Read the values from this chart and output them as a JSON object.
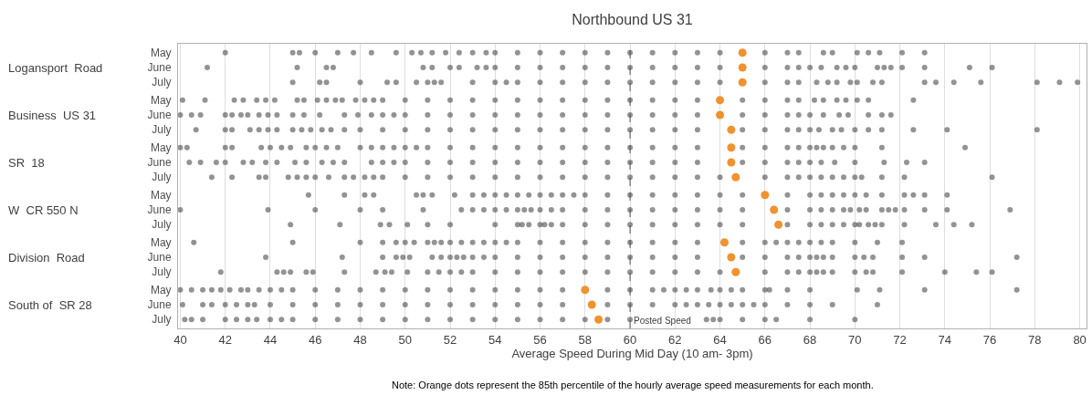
{
  "chart_data": [
    {
      "type": "scatter",
      "orientation": "horizontal",
      "title": "Northbound US 31",
      "ylabel": "Logansport  Road",
      "categories": [
        "May",
        "June",
        "July"
      ],
      "xlim": [
        39.9,
        80.3
      ],
      "xticks": [
        40,
        42,
        44,
        46,
        48,
        50,
        52,
        54,
        56,
        58,
        60,
        62,
        64,
        66,
        68,
        70,
        72,
        74,
        76,
        78,
        80
      ],
      "grid": "x",
      "marker": "circle",
      "tick_labels": "y",
      "ref_lines": [
        {
          "axis": "x",
          "value": 60,
          "color": "#555555",
          "line_style": "dashed"
        }
      ],
      "series": [
        {
          "color": "#3a3a3a",
          "x": [
            "May",
            "May",
            "May",
            "May",
            "May",
            "May",
            "May",
            "May",
            "May",
            "May",
            "May",
            "May",
            "May",
            "May",
            "May",
            "May",
            "May",
            "May",
            "May",
            "May",
            "May",
            "May",
            "May",
            "May",
            "May",
            "May",
            "May",
            "May",
            "May",
            "May",
            "May",
            "May",
            "May",
            "May",
            "May",
            "May",
            "June",
            "June",
            "June",
            "June",
            "June",
            "June",
            "June",
            "June",
            "June",
            "June",
            "June",
            "June",
            "June",
            "June",
            "June",
            "June",
            "June",
            "June",
            "June",
            "June",
            "June",
            "June",
            "June",
            "June",
            "June",
            "June",
            "June",
            "June",
            "June",
            "June",
            "June",
            "June",
            "June",
            "June",
            "June",
            "June",
            "July",
            "July",
            "July",
            "July",
            "July",
            "July",
            "July",
            "July",
            "July",
            "July",
            "July",
            "July",
            "July",
            "July",
            "July",
            "July",
            "July",
            "July",
            "July",
            "July",
            "July",
            "July",
            "July",
            "July",
            "July",
            "July",
            "July",
            "July",
            "July",
            "July",
            "July",
            "July",
            "July",
            "July",
            "July",
            "July",
            "July",
            "July",
            "July",
            "July"
          ],
          "values": [
            42,
            45,
            45.3,
            46,
            47,
            47.7,
            48.5,
            49.6,
            50.3,
            50.7,
            51.2,
            51.8,
            52.4,
            53,
            53.6,
            54,
            55,
            56,
            57,
            58,
            59,
            60,
            61,
            62,
            63,
            64,
            66,
            67,
            67.5,
            68.6,
            69,
            70.1,
            70.6,
            71.1,
            72.1,
            73.1,
            41.2,
            45.2,
            46.5,
            46.8,
            50.8,
            51.2,
            52,
            52.4,
            53.2,
            53.6,
            54,
            55,
            56,
            57,
            58,
            59,
            60,
            61,
            62,
            63,
            64,
            66,
            67,
            67.5,
            68,
            68.5,
            69.2,
            69.6,
            70,
            71,
            71.3,
            71.6,
            72.1,
            73.1,
            75.1,
            76.1,
            45,
            46.2,
            46.5,
            48,
            49.2,
            49.6,
            50.5,
            51,
            51.3,
            51.6,
            53,
            54,
            54.5,
            55,
            56,
            57,
            58,
            59,
            60,
            61,
            62,
            63,
            64,
            66,
            67,
            67.5,
            68.3,
            68.8,
            69.2,
            69.8,
            70.1,
            70.8,
            71.2,
            73.1,
            73.6,
            74.4,
            75.6,
            78.1,
            79.1,
            79.9
          ]
        },
        {
          "color": "#f0922e",
          "values": [
            65.0,
            65.0,
            65.0
          ]
        }
      ]
    },
    {
      "type": "scatter",
      "orientation": "horizontal",
      "ylabel": "Business  US 31",
      "categories": [
        "May",
        "June",
        "July"
      ],
      "xlim": [
        39.9,
        80.3
      ],
      "xticks": [
        40,
        42,
        44,
        46,
        48,
        50,
        52,
        54,
        56,
        58,
        60,
        62,
        64,
        66,
        68,
        70,
        72,
        74,
        76,
        78,
        80
      ],
      "grid": "x",
      "marker": "circle",
      "tick_labels": "y",
      "ref_lines": [
        {
          "axis": "x",
          "value": 60,
          "color": "#555555",
          "line_style": "dashed"
        }
      ],
      "series": [
        {
          "color": "#3a3a3a",
          "x": [
            "May",
            "May",
            "May",
            "May",
            "May",
            "May",
            "May",
            "May",
            "May",
            "May",
            "May",
            "May",
            "May",
            "May",
            "May",
            "May",
            "May",
            "May",
            "May",
            "May",
            "May",
            "May",
            "May",
            "May",
            "May",
            "May",
            "May",
            "May",
            "May",
            "May",
            "May",
            "May",
            "May",
            "May",
            "May",
            "May",
            "May",
            "May",
            "May",
            "May",
            "May",
            "May",
            "June",
            "June",
            "June",
            "June",
            "June",
            "June",
            "June",
            "June",
            "June",
            "June",
            "June",
            "June",
            "June",
            "June",
            "June",
            "June",
            "June",
            "June",
            "June",
            "June",
            "June",
            "June",
            "June",
            "June",
            "June",
            "June",
            "June",
            "June",
            "June",
            "June",
            "June",
            "June",
            "June",
            "June",
            "June",
            "June",
            "June",
            "June",
            "June",
            "June",
            "June",
            "June",
            "June",
            "July",
            "July",
            "July",
            "July",
            "July",
            "July",
            "July",
            "July",
            "July",
            "July",
            "July",
            "July",
            "July",
            "July",
            "July",
            "July",
            "July",
            "July",
            "July",
            "July",
            "July",
            "July",
            "July",
            "July",
            "July",
            "July",
            "July",
            "July",
            "July",
            "July",
            "July",
            "July",
            "July",
            "July",
            "July",
            "July",
            "July",
            "July",
            "July",
            "July",
            "July",
            "July",
            "July"
          ],
          "values": [
            40.1,
            41.1,
            42.4,
            42.8,
            43.4,
            43.8,
            44.2,
            45.2,
            45.5,
            46.1,
            46.5,
            46.9,
            47.2,
            47.8,
            48.2,
            48.6,
            49,
            50,
            51,
            52,
            53,
            54,
            55,
            56,
            57,
            58,
            59,
            60,
            61,
            62,
            63,
            65,
            66,
            67,
            67.5,
            68.2,
            68.6,
            69.2,
            69.6,
            70.1,
            70.6,
            72.6,
            40,
            40.5,
            40.9,
            42,
            42.3,
            42.7,
            43,
            43.5,
            43.9,
            44.3,
            45,
            45.5,
            46.2,
            47.3,
            47.9,
            48.5,
            49,
            49.5,
            50,
            51,
            52,
            53,
            54,
            55,
            56,
            57,
            58,
            59,
            60,
            61,
            62,
            63,
            65,
            66,
            67,
            67.5,
            68,
            68.6,
            69.3,
            69.7,
            70.6,
            71.2,
            71.6,
            40.7,
            42,
            42.3,
            43.1,
            43.5,
            43.9,
            44.3,
            45,
            45.4,
            45.8,
            46.3,
            46.7,
            47.3,
            48,
            49,
            50,
            51,
            52,
            53,
            54,
            55,
            56,
            57,
            58,
            59,
            60,
            61,
            62,
            63,
            65,
            66,
            67,
            67.5,
            68,
            68.4,
            69,
            69.4,
            70,
            70.6,
            71.2,
            72.6,
            74.1,
            78.1
          ]
        },
        {
          "color": "#f0922e",
          "values": [
            64.0,
            64.0,
            64.5
          ]
        }
      ]
    },
    {
      "type": "scatter",
      "orientation": "horizontal",
      "ylabel": "SR  18",
      "categories": [
        "May",
        "June",
        "July"
      ],
      "xlim": [
        39.9,
        80.3
      ],
      "xticks": [
        40,
        42,
        44,
        46,
        48,
        50,
        52,
        54,
        56,
        58,
        60,
        62,
        64,
        66,
        68,
        70,
        72,
        74,
        76,
        78,
        80
      ],
      "grid": "x",
      "marker": "circle",
      "tick_labels": "y",
      "ref_lines": [
        {
          "axis": "x",
          "value": 60,
          "color": "#555555",
          "line_style": "dashed"
        }
      ],
      "series": [
        {
          "color": "#3a3a3a",
          "x": [
            "May",
            "May",
            "May",
            "May",
            "May",
            "May",
            "May",
            "May",
            "May",
            "May",
            "May",
            "May",
            "May",
            "May",
            "May",
            "May",
            "May",
            "May",
            "May",
            "May",
            "May",
            "May",
            "May",
            "May",
            "May",
            "May",
            "May",
            "May",
            "May",
            "May",
            "May",
            "May",
            "May",
            "May",
            "May",
            "May",
            "May",
            "May",
            "May",
            "May",
            "May",
            "May",
            "May",
            "June",
            "June",
            "June",
            "June",
            "June",
            "June",
            "June",
            "June",
            "June",
            "June",
            "June",
            "June",
            "June",
            "June",
            "June",
            "June",
            "June",
            "June",
            "June",
            "June",
            "June",
            "June",
            "June",
            "June",
            "June",
            "June",
            "June",
            "June",
            "June",
            "June",
            "June",
            "June",
            "June",
            "June",
            "June",
            "June",
            "June",
            "June",
            "June",
            "June",
            "June",
            "July",
            "July",
            "July",
            "July",
            "July",
            "July",
            "July",
            "July",
            "July",
            "July",
            "July",
            "July",
            "July",
            "July",
            "July",
            "July",
            "July",
            "July",
            "July",
            "July",
            "July",
            "July",
            "July",
            "July",
            "July",
            "July",
            "July",
            "July",
            "July",
            "July",
            "July",
            "July",
            "July",
            "July",
            "July",
            "July",
            "July",
            "July",
            "July",
            "July",
            "July"
          ],
          "values": [
            40,
            40.3,
            42,
            42.3,
            43.6,
            44,
            44.5,
            44.9,
            45.6,
            46,
            46.5,
            47,
            48,
            48.5,
            49,
            49.5,
            50,
            50.5,
            51,
            52,
            53,
            54,
            55,
            56,
            57,
            58,
            59,
            60,
            61,
            62,
            63,
            65,
            66,
            67,
            67.5,
            68,
            68.3,
            68.6,
            69,
            69.5,
            70,
            71.2,
            74.9,
            40.4,
            40.9,
            41.6,
            42,
            42.8,
            43.2,
            43.8,
            44.3,
            45.1,
            45.6,
            46.3,
            46.8,
            47.3,
            48.5,
            49,
            49.5,
            50,
            51,
            52,
            53,
            54,
            55,
            56,
            57,
            58,
            59,
            60,
            61,
            62,
            63,
            65,
            66,
            67,
            67.5,
            68,
            68.5,
            69.1,
            70,
            71.3,
            72.3,
            73.1,
            41.4,
            42.3,
            43.5,
            43.8,
            44.8,
            45.2,
            45.6,
            46,
            46.6,
            47.3,
            47.7,
            48.2,
            48.6,
            49,
            50,
            51,
            52,
            53,
            54,
            55,
            56,
            57,
            58,
            59,
            60,
            61,
            62,
            63,
            64,
            66,
            67,
            67.5,
            68,
            68.5,
            69,
            69.5,
            70,
            70.3,
            71.2,
            72.2,
            76.1
          ]
        },
        {
          "color": "#f0922e",
          "values": [
            64.5,
            64.5,
            64.7
          ]
        }
      ]
    },
    {
      "type": "scatter",
      "orientation": "horizontal",
      "ylabel": "W  CR 550 N",
      "categories": [
        "May",
        "June",
        "July"
      ],
      "xlim": [
        39.9,
        80.3
      ],
      "xticks": [
        40,
        42,
        44,
        46,
        48,
        50,
        52,
        54,
        56,
        58,
        60,
        62,
        64,
        66,
        68,
        70,
        72,
        74,
        76,
        78,
        80
      ],
      "grid": "x",
      "marker": "circle",
      "tick_labels": "y",
      "ref_lines": [
        {
          "axis": "x",
          "value": 60,
          "color": "#555555",
          "line_style": "dashed"
        }
      ],
      "series": [
        {
          "color": "#3a3a3a",
          "x": [
            "May",
            "May",
            "May",
            "May",
            "May",
            "May",
            "May",
            "May",
            "May",
            "May",
            "May",
            "May",
            "May",
            "May",
            "May",
            "May",
            "May",
            "May",
            "May",
            "May",
            "May",
            "May",
            "May",
            "May",
            "May",
            "May",
            "May",
            "May",
            "May",
            "May",
            "May",
            "May",
            "May",
            "May",
            "May",
            "May",
            "May",
            "May",
            "June",
            "June",
            "June",
            "June",
            "June",
            "June",
            "June",
            "June",
            "June",
            "June",
            "June",
            "June",
            "June",
            "June",
            "June",
            "June",
            "June",
            "June",
            "June",
            "June",
            "June",
            "June",
            "June",
            "June",
            "June",
            "June",
            "June",
            "June",
            "June",
            "June",
            "June",
            "June",
            "June",
            "June",
            "June",
            "June",
            "June",
            "June",
            "June",
            "June",
            "July",
            "July",
            "July",
            "July",
            "July",
            "July",
            "July",
            "July",
            "July",
            "July",
            "July",
            "July",
            "July",
            "July",
            "July",
            "July",
            "July",
            "July",
            "July",
            "July",
            "July",
            "July",
            "July",
            "July",
            "July",
            "July",
            "July",
            "July",
            "July",
            "July",
            "July",
            "July",
            "July",
            "July",
            "July",
            "July",
            "July"
          ],
          "values": [
            45.7,
            47.3,
            48.2,
            48.6,
            50.5,
            50.8,
            51.2,
            52.2,
            53,
            53.5,
            54,
            54.5,
            55,
            55.5,
            56,
            56.5,
            57,
            57.5,
            58,
            59,
            60,
            61,
            62,
            63,
            64,
            65,
            67,
            68,
            68.5,
            69,
            69.5,
            70,
            70.5,
            71.2,
            72.2,
            72.6,
            73.1,
            74.1,
            40,
            43.9,
            46,
            48,
            49,
            50.8,
            52.5,
            53,
            53.5,
            54,
            54.5,
            55,
            55.3,
            55.6,
            56,
            56.5,
            57,
            58,
            59,
            60,
            61,
            62,
            63,
            64,
            65,
            67,
            68,
            68.5,
            69,
            69.5,
            69.8,
            70.2,
            70.5,
            71.2,
            71.5,
            71.8,
            72.2,
            73.1,
            74.1,
            76.9,
            44.9,
            47.1,
            48.9,
            49.3,
            50.1,
            51,
            52,
            54,
            55,
            55.2,
            55.5,
            56,
            56.2,
            56.5,
            57,
            58,
            59,
            60,
            61,
            62,
            63,
            64,
            65,
            67,
            68,
            68.5,
            69,
            69.5,
            70,
            70.2,
            70.6,
            70.9,
            71.2,
            72.2,
            73.6,
            74.4,
            75.2
          ]
        },
        {
          "color": "#f0922e",
          "values": [
            66.0,
            66.4,
            66.6
          ]
        }
      ]
    },
    {
      "type": "scatter",
      "orientation": "horizontal",
      "ylabel": "Division  Road",
      "categories": [
        "May",
        "June",
        "July"
      ],
      "xlim": [
        39.9,
        80.3
      ],
      "xticks": [
        40,
        42,
        44,
        46,
        48,
        50,
        52,
        54,
        56,
        58,
        60,
        62,
        64,
        66,
        68,
        70,
        72,
        74,
        76,
        78,
        80
      ],
      "grid": "x",
      "marker": "circle",
      "tick_labels": "y",
      "ref_lines": [
        {
          "axis": "x",
          "value": 60,
          "color": "#555555",
          "line_style": "dashed"
        }
      ],
      "series": [
        {
          "color": "#3a3a3a",
          "x": [
            "May",
            "May",
            "May",
            "May",
            "May",
            "May",
            "May",
            "May",
            "May",
            "May",
            "May",
            "May",
            "May",
            "May",
            "May",
            "May",
            "May",
            "May",
            "May",
            "May",
            "May",
            "May",
            "May",
            "May",
            "May",
            "May",
            "May",
            "May",
            "May",
            "May",
            "May",
            "May",
            "May",
            "May",
            "May",
            "May",
            "June",
            "June",
            "June",
            "June",
            "June",
            "June",
            "June",
            "June",
            "June",
            "June",
            "June",
            "June",
            "June",
            "June",
            "June",
            "June",
            "June",
            "June",
            "June",
            "June",
            "June",
            "June",
            "June",
            "June",
            "June",
            "June",
            "June",
            "June",
            "June",
            "June",
            "June",
            "June",
            "June",
            "June",
            "June",
            "June",
            "June",
            "July",
            "July",
            "July",
            "July",
            "July",
            "July",
            "July",
            "July",
            "July",
            "July",
            "July",
            "July",
            "July",
            "July",
            "July",
            "July",
            "July",
            "July",
            "July",
            "July",
            "July",
            "July",
            "July",
            "July",
            "July",
            "July",
            "July",
            "July",
            "July",
            "July",
            "July",
            "July",
            "July",
            "July",
            "July",
            "July",
            "July",
            "July",
            "July",
            "July",
            "July"
          ],
          "values": [
            40.6,
            45,
            48,
            49,
            49.6,
            50,
            50.4,
            51,
            51.3,
            51.6,
            52,
            52.5,
            53,
            53.5,
            54,
            54.5,
            55,
            56,
            57,
            58,
            59,
            60,
            61,
            62,
            63,
            65,
            66,
            66.5,
            67,
            67.5,
            68,
            68.5,
            69,
            70,
            71,
            72.1,
            43.8,
            47.2,
            49,
            49.6,
            49.9,
            50.2,
            51.2,
            51.6,
            52,
            52.3,
            52.6,
            53,
            53.5,
            54,
            55,
            56,
            57,
            58,
            59,
            60,
            61,
            62,
            63,
            65,
            66,
            67,
            67.5,
            68,
            68.3,
            68.6,
            69,
            70,
            70.4,
            70.8,
            72.1,
            73.1,
            77.2,
            41.8,
            44.3,
            44.6,
            44.9,
            45.6,
            45.9,
            47.3,
            48.7,
            49.1,
            49.4,
            50.1,
            51,
            51.5,
            52,
            52.5,
            53,
            54,
            55,
            56,
            57,
            58,
            59,
            60,
            61,
            62,
            63,
            64,
            66,
            67,
            67.5,
            68,
            68.3,
            68.6,
            69,
            70,
            70.5,
            70.8,
            72.1,
            74,
            75.4,
            76.1
          ]
        },
        {
          "color": "#f0922e",
          "values": [
            64.2,
            64.5,
            64.7
          ]
        }
      ]
    },
    {
      "type": "scatter",
      "orientation": "horizontal",
      "ylabel": "South of  SR 28",
      "xlabel": "Average Speed During Mid Day (10 am- 3pm)",
      "categories": [
        "May",
        "June",
        "July"
      ],
      "xlim": [
        39.9,
        80.3
      ],
      "xticks": [
        40,
        42,
        44,
        46,
        48,
        50,
        52,
        54,
        56,
        58,
        60,
        62,
        64,
        66,
        68,
        70,
        72,
        74,
        76,
        78,
        80
      ],
      "grid": "x",
      "marker": "circle",
      "ref_lines": [
        {
          "axis": "x",
          "value": 60,
          "color": "#555555",
          "line_style": "dashed",
          "label": "Posted Speed"
        }
      ],
      "annotations": [
        "Note: Orange dots represent the 85th percentile of the hourly average speed measurements for each month."
      ],
      "series": [
        {
          "color": "#3a3a3a",
          "x": [
            "May",
            "May",
            "May",
            "May",
            "May",
            "May",
            "May",
            "May",
            "May",
            "May",
            "May",
            "May",
            "May",
            "May",
            "May",
            "May",
            "May",
            "May",
            "May",
            "May",
            "May",
            "May",
            "May",
            "May",
            "May",
            "May",
            "May",
            "May",
            "May",
            "May",
            "May",
            "May",
            "May",
            "May",
            "May",
            "May",
            "May",
            "May",
            "May",
            "May",
            "May",
            "May",
            "May",
            "June",
            "June",
            "June",
            "June",
            "June",
            "June",
            "June",
            "June",
            "June",
            "June",
            "June",
            "June",
            "June",
            "June",
            "June",
            "June",
            "June",
            "June",
            "June",
            "June",
            "June",
            "June",
            "June",
            "June",
            "June",
            "June",
            "June",
            "June",
            "June",
            "June",
            "June",
            "June",
            "June",
            "June",
            "June",
            "June",
            "June",
            "July",
            "July",
            "July",
            "July",
            "July",
            "July",
            "July",
            "July",
            "July",
            "July",
            "July",
            "July",
            "July",
            "July",
            "July",
            "July",
            "July",
            "July",
            "July",
            "July",
            "July",
            "July",
            "July",
            "July",
            "July",
            "July",
            "July",
            "July",
            "July",
            "July",
            "July",
            "July",
            "July"
          ],
          "values": [
            40,
            40.5,
            41,
            41.4,
            41.8,
            42.2,
            42.7,
            43,
            43.5,
            44,
            44.5,
            45,
            46,
            47,
            48,
            49,
            50,
            51,
            52,
            53,
            54,
            55,
            56,
            57,
            59,
            60,
            61,
            61.5,
            62,
            62.5,
            63,
            63.6,
            64,
            64.5,
            65,
            66,
            66.2,
            67,
            68,
            70.1,
            71.1,
            73.1,
            77.2,
            40.1,
            41,
            41.4,
            42,
            42.5,
            43,
            43.3,
            44,
            45,
            46,
            47,
            48,
            49,
            50,
            51,
            52,
            53,
            54,
            55,
            56,
            57,
            59,
            60,
            61,
            62,
            62.5,
            63,
            63.5,
            64,
            64.5,
            65,
            65.5,
            66,
            67,
            68,
            69,
            71,
            40.2,
            40.5,
            41,
            42,
            42.5,
            43,
            43.4,
            44,
            44.5,
            45,
            46,
            47,
            48,
            49,
            50,
            51,
            52,
            53,
            54,
            55,
            56,
            57,
            58,
            59,
            60,
            63.4,
            63.7,
            64,
            65,
            66,
            66.5,
            68,
            70
          ]
        },
        {
          "color": "#f0922e",
          "values": [
            58.0,
            58.3,
            58.6
          ]
        }
      ]
    }
  ]
}
